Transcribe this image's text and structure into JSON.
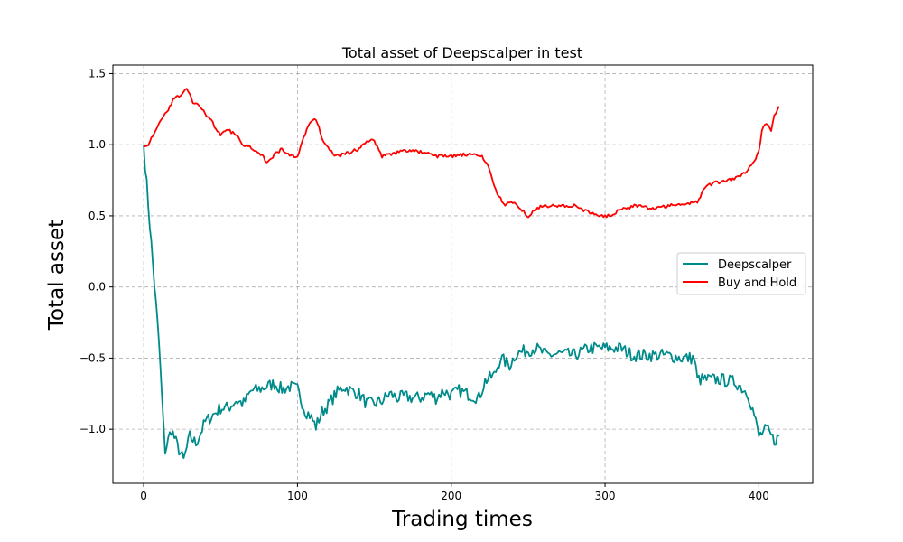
{
  "chart_data": {
    "type": "line",
    "title": "Total asset of Deepscalper in test",
    "xlabel": "Trading times",
    "ylabel": "Total asset",
    "xlim": [
      -20,
      435
    ],
    "ylim": [
      -1.38,
      1.56
    ],
    "xticks": [
      0,
      100,
      200,
      300,
      400
    ],
    "yticks": [
      -1.0,
      -0.5,
      0.0,
      0.5,
      1.0,
      1.5
    ],
    "ytick_labels": [
      "−1.0",
      "−0.5",
      "0.0",
      "0.5",
      "1.0",
      "1.5"
    ],
    "grid": true,
    "legend_position": "center-right",
    "series": [
      {
        "name": "Deepscalper",
        "color": "#008b8b",
        "anchors": [
          [
            0,
            1.0
          ],
          [
            5,
            0.3
          ],
          [
            10,
            -0.4
          ],
          [
            13,
            -1.0
          ],
          [
            14,
            -1.15
          ],
          [
            18,
            -1.0
          ],
          [
            22,
            -1.12
          ],
          [
            26,
            -1.22
          ],
          [
            30,
            -1.05
          ],
          [
            34,
            -1.1
          ],
          [
            40,
            -0.95
          ],
          [
            45,
            -0.9
          ],
          [
            50,
            -0.85
          ],
          [
            55,
            -0.85
          ],
          [
            60,
            -0.8
          ],
          [
            65,
            -0.82
          ],
          [
            70,
            -0.73
          ],
          [
            75,
            -0.72
          ],
          [
            80,
            -0.7
          ],
          [
            85,
            -0.68
          ],
          [
            90,
            -0.72
          ],
          [
            95,
            -0.7
          ],
          [
            100,
            -0.72
          ],
          [
            105,
            -0.87
          ],
          [
            108,
            -0.9
          ],
          [
            112,
            -0.98
          ],
          [
            116,
            -0.88
          ],
          [
            120,
            -0.83
          ],
          [
            125,
            -0.75
          ],
          [
            130,
            -0.7
          ],
          [
            135,
            -0.73
          ],
          [
            140,
            -0.75
          ],
          [
            145,
            -0.82
          ],
          [
            150,
            -0.82
          ],
          [
            155,
            -0.8
          ],
          [
            160,
            -0.75
          ],
          [
            165,
            -0.78
          ],
          [
            170,
            -0.77
          ],
          [
            175,
            -0.78
          ],
          [
            180,
            -0.78
          ],
          [
            185,
            -0.75
          ],
          [
            190,
            -0.78
          ],
          [
            195,
            -0.73
          ],
          [
            200,
            -0.76
          ],
          [
            205,
            -0.73
          ],
          [
            210,
            -0.75
          ],
          [
            218,
            -0.78
          ],
          [
            222,
            -0.66
          ],
          [
            228,
            -0.62
          ],
          [
            232,
            -0.5
          ],
          [
            238,
            -0.55
          ],
          [
            242,
            -0.47
          ],
          [
            248,
            -0.45
          ],
          [
            255,
            -0.43
          ],
          [
            262,
            -0.48
          ],
          [
            270,
            -0.47
          ],
          [
            280,
            -0.48
          ],
          [
            290,
            -0.43
          ],
          [
            300,
            -0.43
          ],
          [
            310,
            -0.43
          ],
          [
            318,
            -0.48
          ],
          [
            330,
            -0.48
          ],
          [
            340,
            -0.48
          ],
          [
            350,
            -0.5
          ],
          [
            358,
            -0.5
          ],
          [
            360,
            -0.65
          ],
          [
            365,
            -0.65
          ],
          [
            375,
            -0.65
          ],
          [
            385,
            -0.67
          ],
          [
            393,
            -0.75
          ],
          [
            397,
            -0.9
          ],
          [
            400,
            -1.05
          ],
          [
            405,
            -1.0
          ],
          [
            410,
            -1.08
          ],
          [
            413,
            -1.05
          ]
        ],
        "noise": 0.045
      },
      {
        "name": "Buy and Hold",
        "color": "#ff0000",
        "anchors": [
          [
            0,
            1.0
          ],
          [
            3,
            1.0
          ],
          [
            5,
            1.05
          ],
          [
            8,
            1.1
          ],
          [
            12,
            1.18
          ],
          [
            16,
            1.25
          ],
          [
            20,
            1.33
          ],
          [
            25,
            1.35
          ],
          [
            28,
            1.4
          ],
          [
            32,
            1.3
          ],
          [
            36,
            1.28
          ],
          [
            40,
            1.22
          ],
          [
            45,
            1.15
          ],
          [
            50,
            1.07
          ],
          [
            55,
            1.1
          ],
          [
            60,
            1.07
          ],
          [
            65,
            1.0
          ],
          [
            70,
            0.98
          ],
          [
            75,
            0.95
          ],
          [
            80,
            0.88
          ],
          [
            85,
            0.93
          ],
          [
            90,
            0.97
          ],
          [
            95,
            0.92
          ],
          [
            100,
            0.92
          ],
          [
            104,
            1.05
          ],
          [
            108,
            1.15
          ],
          [
            112,
            1.18
          ],
          [
            116,
            1.05
          ],
          [
            120,
            0.97
          ],
          [
            125,
            0.92
          ],
          [
            130,
            0.93
          ],
          [
            140,
            0.97
          ],
          [
            145,
            1.02
          ],
          [
            150,
            1.03
          ],
          [
            155,
            0.92
          ],
          [
            160,
            0.93
          ],
          [
            170,
            0.96
          ],
          [
            180,
            0.95
          ],
          [
            190,
            0.92
          ],
          [
            200,
            0.92
          ],
          [
            210,
            0.93
          ],
          [
            220,
            0.92
          ],
          [
            225,
            0.82
          ],
          [
            230,
            0.65
          ],
          [
            235,
            0.58
          ],
          [
            240,
            0.6
          ],
          [
            245,
            0.55
          ],
          [
            250,
            0.5
          ],
          [
            255,
            0.55
          ],
          [
            260,
            0.57
          ],
          [
            270,
            0.57
          ],
          [
            280,
            0.57
          ],
          [
            290,
            0.52
          ],
          [
            300,
            0.5
          ],
          [
            305,
            0.5
          ],
          [
            310,
            0.55
          ],
          [
            320,
            0.57
          ],
          [
            330,
            0.55
          ],
          [
            340,
            0.57
          ],
          [
            350,
            0.58
          ],
          [
            360,
            0.6
          ],
          [
            365,
            0.7
          ],
          [
            370,
            0.73
          ],
          [
            380,
            0.75
          ],
          [
            385,
            0.77
          ],
          [
            390,
            0.8
          ],
          [
            395,
            0.85
          ],
          [
            400,
            0.95
          ],
          [
            402,
            1.1
          ],
          [
            405,
            1.15
          ],
          [
            408,
            1.1
          ],
          [
            410,
            1.2
          ],
          [
            413,
            1.27
          ]
        ],
        "noise": 0.012
      }
    ]
  }
}
